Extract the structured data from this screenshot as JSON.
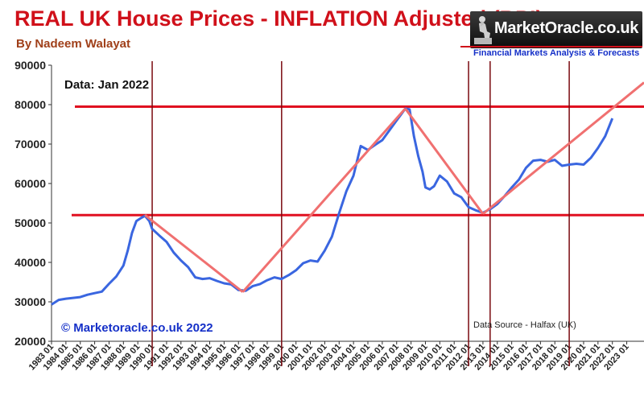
{
  "header": {
    "title": "REAL UK House Prices - INFLATION Adjusted (RPI)",
    "author": "By Nadeem Walayat"
  },
  "logo": {
    "name": "MarketOracle.co.uk",
    "tagline": "Financial Markets Analysis & Forecasts",
    "icon": "thinker-statue-icon"
  },
  "colors": {
    "title": "#d0101a",
    "series": "#3a66e0",
    "trendline": "#f07070",
    "level_line": "#e01020",
    "vertical_line": "#7a0a10",
    "copyright": "#1530c8"
  },
  "chart_data": {
    "type": "line",
    "title": "REAL UK House Prices - INFLATION Adjusted (RPI)",
    "xlabel": "",
    "ylabel": "",
    "annotations": {
      "data_date": "Data: Jan 2022",
      "copyright": "© Marketoracle.co.uk 2022",
      "source": "Data Source - Halfax (UK)"
    },
    "ylim": [
      20000,
      90000
    ],
    "yticks": [
      20000,
      30000,
      40000,
      50000,
      60000,
      70000,
      80000,
      90000
    ],
    "xlim": [
      1983.0,
      2024.2
    ],
    "xticks": [
      "1983 01",
      "1984 01",
      "1985 01",
      "1986 01",
      "1987 01",
      "1988 01",
      "1989 01",
      "1990 01",
      "1991 01",
      "1992 01",
      "1993 01",
      "1994 01",
      "1995 01",
      "1996 01",
      "1997 01",
      "1998 01",
      "1999 01",
      "2000 01",
      "2001 01",
      "2002 01",
      "2003 01",
      "2004 01",
      "2005 01",
      "2006 01",
      "2007 01",
      "2008 01",
      "2009 01",
      "2010 01",
      "2011 01",
      "2012 01",
      "2013 01",
      "2014 01",
      "2015 01",
      "2016 01",
      "2017 01",
      "2018 01",
      "2019 01",
      "2020 01",
      "2021 01",
      "2022 01",
      "2023 01"
    ],
    "grid": false,
    "series": [
      {
        "x": [
          1983.0,
          1983.5,
          1984.0,
          1984.5,
          1985.0,
          1985.5,
          1986.0,
          1986.5,
          1987.0,
          1987.5,
          1988.0,
          1988.3,
          1988.6,
          1988.9,
          1989.2,
          1989.5,
          1989.8,
          1990.0,
          1990.5,
          1991.0,
          1991.5,
          1992.0,
          1992.5,
          1993.0,
          1993.5,
          1994.0,
          1994.5,
          1995.0,
          1995.5,
          1996.0,
          1996.5,
          1997.0,
          1997.5,
          1998.0,
          1998.5,
          1999.0,
          1999.5,
          2000.0,
          2000.5,
          2001.0,
          2001.5,
          2002.0,
          2002.5,
          2003.0,
          2003.5,
          2004.0,
          2004.5,
          2005.0,
          2005.5,
          2006.0,
          2006.5,
          2007.0,
          2007.3,
          2007.6,
          2007.9,
          2008.2,
          2008.5,
          2008.8,
          2009.0,
          2009.3,
          2009.6,
          2010.0,
          2010.5,
          2011.0,
          2011.5,
          2012.0,
          2012.5,
          2013.0,
          2013.5,
          2014.0,
          2014.5,
          2015.0,
          2015.5,
          2016.0,
          2016.5,
          2017.0,
          2017.5,
          2018.0,
          2018.5,
          2019.0,
          2019.5,
          2020.0,
          2020.5,
          2021.0,
          2021.5,
          2022.0
        ],
        "values": [
          29300,
          30500,
          30800,
          31000,
          31200,
          31800,
          32200,
          32600,
          34600,
          36400,
          39200,
          43000,
          47500,
          50500,
          51200,
          51800,
          50500,
          48500,
          46800,
          45200,
          42500,
          40500,
          38800,
          36200,
          35800,
          36000,
          35300,
          34700,
          34400,
          33000,
          32800,
          34000,
          34500,
          35500,
          36200,
          35800,
          36800,
          38000,
          39800,
          40500,
          40200,
          43000,
          46500,
          52500,
          58000,
          62000,
          69500,
          68500,
          69800,
          71000,
          73500,
          76000,
          77500,
          79000,
          78800,
          72000,
          67000,
          63000,
          59000,
          58500,
          59300,
          62000,
          60500,
          57500,
          56500,
          54000,
          53200,
          52600,
          53500,
          54800,
          56800,
          59000,
          61000,
          64000,
          65800,
          66000,
          65500,
          66000,
          64500,
          64800,
          65000,
          64800,
          66500,
          69000,
          72000,
          76500
        ]
      }
    ],
    "vertical_lines": [
      1990.0,
      1999.0,
      2012.0,
      2013.5,
      2019.0
    ],
    "horizontal_lines": [
      79500,
      52000
    ],
    "trend_lines": [
      {
        "from": [
          1989.5,
          52000
        ],
        "to": [
          1996.3,
          32500
        ]
      },
      {
        "from": [
          1996.3,
          32500
        ],
        "to": [
          2007.6,
          79000
        ]
      },
      {
        "from": [
          2007.6,
          79000
        ],
        "to": [
          2013.0,
          52300
        ]
      },
      {
        "from": [
          2013.0,
          52300
        ],
        "to": [
          2024.2,
          85600
        ]
      }
    ]
  }
}
